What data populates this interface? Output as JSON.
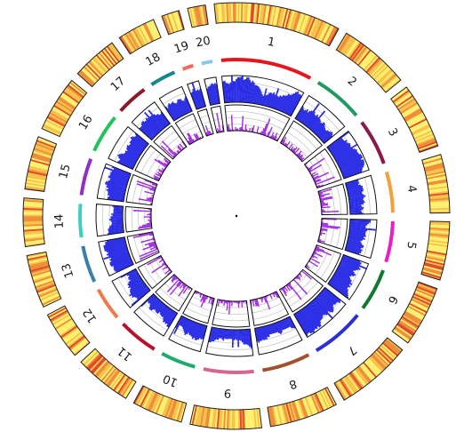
{
  "chart_data": {
    "type": "circos",
    "title": "",
    "chromosomes": [
      {
        "label": "1",
        "size": 100,
        "color": "#e4151c"
      },
      {
        "label": "2",
        "size": 56,
        "color": "#1f9a62"
      },
      {
        "label": "3",
        "size": 52,
        "color": "#8b1a4a"
      },
      {
        "label": "4",
        "size": 46,
        "color": "#f5a13a"
      },
      {
        "label": "5",
        "size": 46,
        "color": "#e81fc4"
      },
      {
        "label": "6",
        "size": 48,
        "color": "#0f7a2e"
      },
      {
        "label": "7",
        "size": 60,
        "color": "#2b2fd6"
      },
      {
        "label": "8",
        "size": 54,
        "color": "#a0522d"
      },
      {
        "label": "9",
        "size": 56,
        "color": "#d6668f"
      },
      {
        "label": "10",
        "size": 40,
        "color": "#1faa6e"
      },
      {
        "label": "11",
        "size": 45,
        "color": "#b5122e"
      },
      {
        "label": "12",
        "size": 38,
        "color": "#f07a4a"
      },
      {
        "label": "13",
        "size": 42,
        "color": "#3b7ea8"
      },
      {
        "label": "14",
        "size": 38,
        "color": "#3ecfc0"
      },
      {
        "label": "15",
        "size": 42,
        "color": "#8f2fc8"
      },
      {
        "label": "16",
        "size": 44,
        "color": "#21c45a"
      },
      {
        "label": "17",
        "size": 36,
        "color": "#8b1a2a"
      },
      {
        "label": "18",
        "size": 30,
        "color": "#15868a"
      },
      {
        "label": "19",
        "size": 14,
        "color": "#f26b5b"
      },
      {
        "label": "20",
        "size": 14,
        "color": "#8ec5e8"
      }
    ],
    "tracks": {
      "density_heatmap": {
        "type": "heatmap",
        "colors": [
          "#fff06e",
          "#f8c24a",
          "#ef8d3a",
          "#e04a2a"
        ]
      },
      "blue_histogram": {
        "type": "histogram",
        "color": "#2a2de6",
        "ylim": [
          0,
          1
        ],
        "gridlines": 4
      },
      "purple_histogram": {
        "type": "histogram",
        "color": "#a030e0",
        "ylim": [
          0,
          1
        ],
        "gridlines": 4
      }
    }
  }
}
